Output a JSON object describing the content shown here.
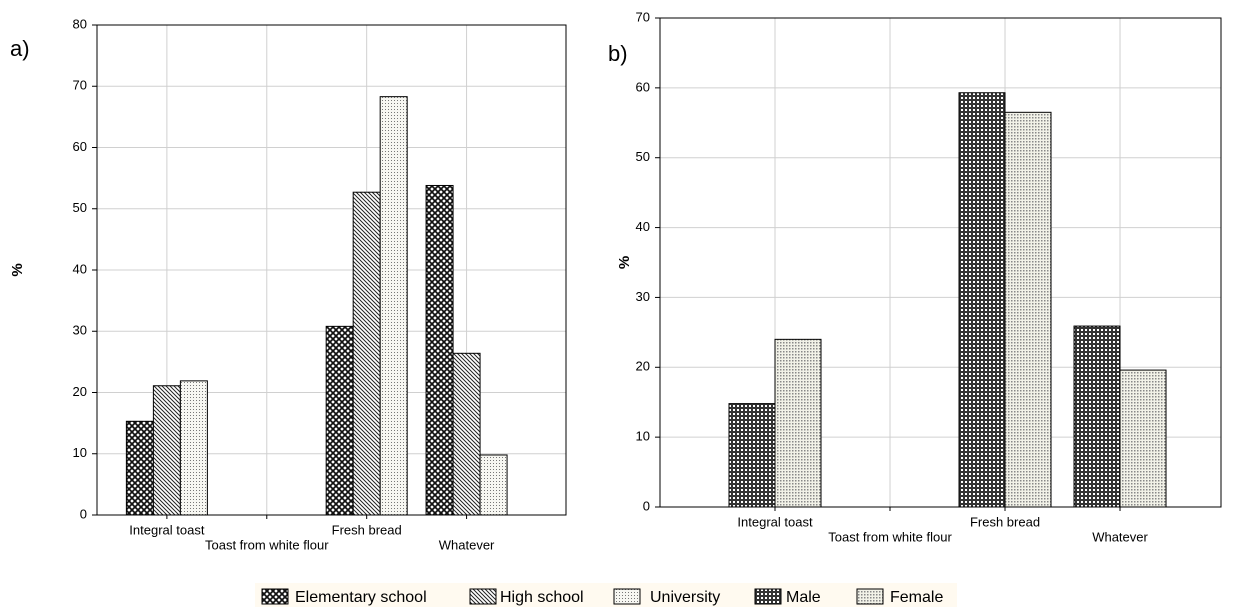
{
  "chart_data": [
    {
      "type": "bar",
      "panel_label": "a)",
      "ylabel": "%",
      "categories": [
        "Integral toast",
        "Toast from white flour",
        "Fresh bread",
        "Whatever"
      ],
      "series": [
        {
          "name": "Elementary school",
          "color": "#111111",
          "values": [
            15.3,
            0,
            30.8,
            53.8
          ]
        },
        {
          "name": "High school",
          "color": "#222222",
          "values": [
            21.1,
            0,
            52.7,
            26.4
          ]
        },
        {
          "name": "University",
          "color": "#777777",
          "values": [
            21.9,
            0,
            68.3,
            9.8
          ]
        }
      ],
      "ylim": [
        0,
        80
      ],
      "yticks": [
        0,
        10,
        20,
        30,
        40,
        50,
        60,
        70,
        80
      ],
      "grid": true
    },
    {
      "type": "bar",
      "panel_label": "b)",
      "ylabel": "%",
      "categories": [
        "Integral toast",
        "Toast from white flour",
        "Fresh bread",
        "Whatever"
      ],
      "series": [
        {
          "name": "Male",
          "color": "#333333",
          "values": [
            14.8,
            0,
            59.3,
            25.9
          ]
        },
        {
          "name": "Female",
          "color": "#888888",
          "values": [
            24.0,
            0,
            56.5,
            19.6
          ]
        }
      ],
      "ylim": [
        0,
        70
      ],
      "yticks": [
        0,
        10,
        20,
        30,
        40,
        50,
        60,
        70
      ],
      "grid": true
    }
  ]
}
